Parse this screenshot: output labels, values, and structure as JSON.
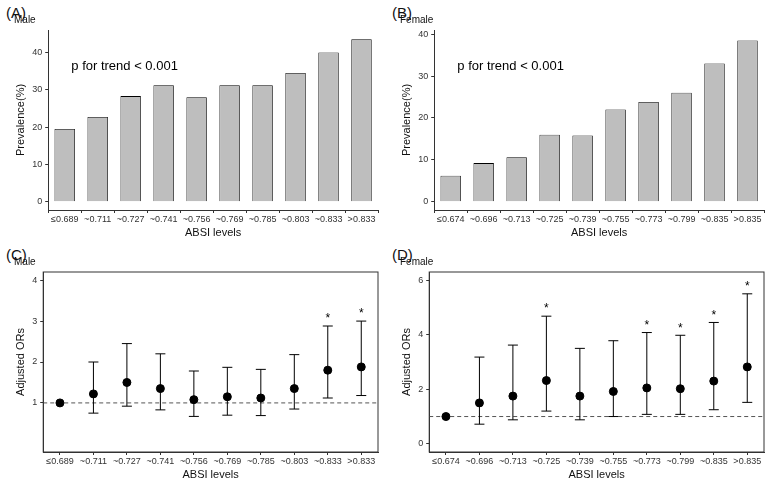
{
  "chart_data": [
    {
      "type": "bar",
      "panel": "(A)",
      "subtitle": "Male",
      "annotation": "p for trend < 0.001",
      "x_label": "ABSI levels",
      "y_label": "Prevalence(%)",
      "categories": [
        "≤0.689",
        "~0.711",
        "~0.727",
        "~0.741",
        "~0.756",
        "~0.769",
        "~0.785",
        "~0.803",
        "~0.833",
        ">0.833"
      ],
      "values": [
        19.5,
        22.7,
        28.3,
        31.2,
        28.0,
        31.2,
        31.2,
        34.5,
        40.0,
        43.5
      ],
      "color": "#bebebe",
      "ylim": [
        -2.2,
        46
      ],
      "yticks": [
        0,
        10,
        20,
        30,
        40
      ],
      "grid": false
    },
    {
      "type": "bar",
      "panel": "(B)",
      "subtitle": "Female",
      "annotation": "p for trend < 0.001",
      "x_label": "ABSI levels",
      "y_label": "Prevalence(%)",
      "categories": [
        "≤0.674",
        "~0.696",
        "~0.713",
        "~0.725",
        "~0.739",
        "~0.755",
        "~0.773",
        "~0.799",
        "~0.835",
        ">0.835"
      ],
      "values": [
        6.2,
        9.2,
        10.6,
        16.0,
        15.8,
        22.0,
        23.8,
        26.0,
        33.0,
        38.5
      ],
      "color": "#bebebe",
      "ylim": [
        -2.0,
        41
      ],
      "yticks": [
        0,
        10,
        20,
        30,
        40
      ],
      "grid": false
    },
    {
      "type": "scatter",
      "panel": "(C)",
      "subtitle": "Male",
      "x_label": "ABSI levels",
      "y_label": "Adjusted ORs",
      "categories": [
        "≤0.689",
        "~0.711",
        "~0.727",
        "~0.741",
        "~0.756",
        "~0.769",
        "~0.785",
        "~0.803",
        "~0.833",
        ">0.833"
      ],
      "values": [
        1.0,
        1.22,
        1.5,
        1.35,
        1.08,
        1.15,
        1.12,
        1.35,
        1.8,
        1.88
      ],
      "lower": [
        null,
        0.75,
        0.92,
        0.83,
        0.67,
        0.7,
        0.69,
        0.85,
        1.12,
        1.18
      ],
      "upper": [
        null,
        2.0,
        2.45,
        2.2,
        1.78,
        1.87,
        1.82,
        2.18,
        2.88,
        3.0
      ],
      "marks": [
        null,
        null,
        null,
        null,
        null,
        null,
        null,
        null,
        "*",
        "*"
      ],
      "hline": 1,
      "color": "#000000",
      "marker": "circle",
      "ylim": [
        -0.2,
        4.2
      ],
      "yticks": [
        1,
        2,
        3,
        4
      ],
      "grid": false
    },
    {
      "type": "scatter",
      "panel": "(D)",
      "subtitle": "Female",
      "x_label": "ABSI levels",
      "y_label": "Adjusted ORs",
      "categories": [
        "≤0.674",
        "~0.696",
        "~0.713",
        "~0.725",
        "~0.739",
        "~0.755",
        "~0.773",
        "~0.799",
        "~0.835",
        ">0.835"
      ],
      "values": [
        1.0,
        1.5,
        1.75,
        2.32,
        1.75,
        1.92,
        2.05,
        2.02,
        2.3,
        2.82
      ],
      "lower": [
        null,
        0.72,
        0.88,
        1.2,
        0.88,
        1.0,
        1.08,
        1.08,
        1.25,
        1.52
      ],
      "upper": [
        null,
        3.18,
        3.62,
        4.68,
        3.5,
        3.78,
        4.08,
        3.98,
        4.45,
        5.5
      ],
      "marks": [
        null,
        null,
        null,
        "*",
        null,
        null,
        "*",
        "*",
        "*",
        "*"
      ],
      "hline": 1,
      "color": "#000000",
      "marker": "circle",
      "ylim": [
        -0.3,
        6.3
      ],
      "yticks": [
        0,
        2,
        4,
        6
      ],
      "grid": false
    }
  ]
}
